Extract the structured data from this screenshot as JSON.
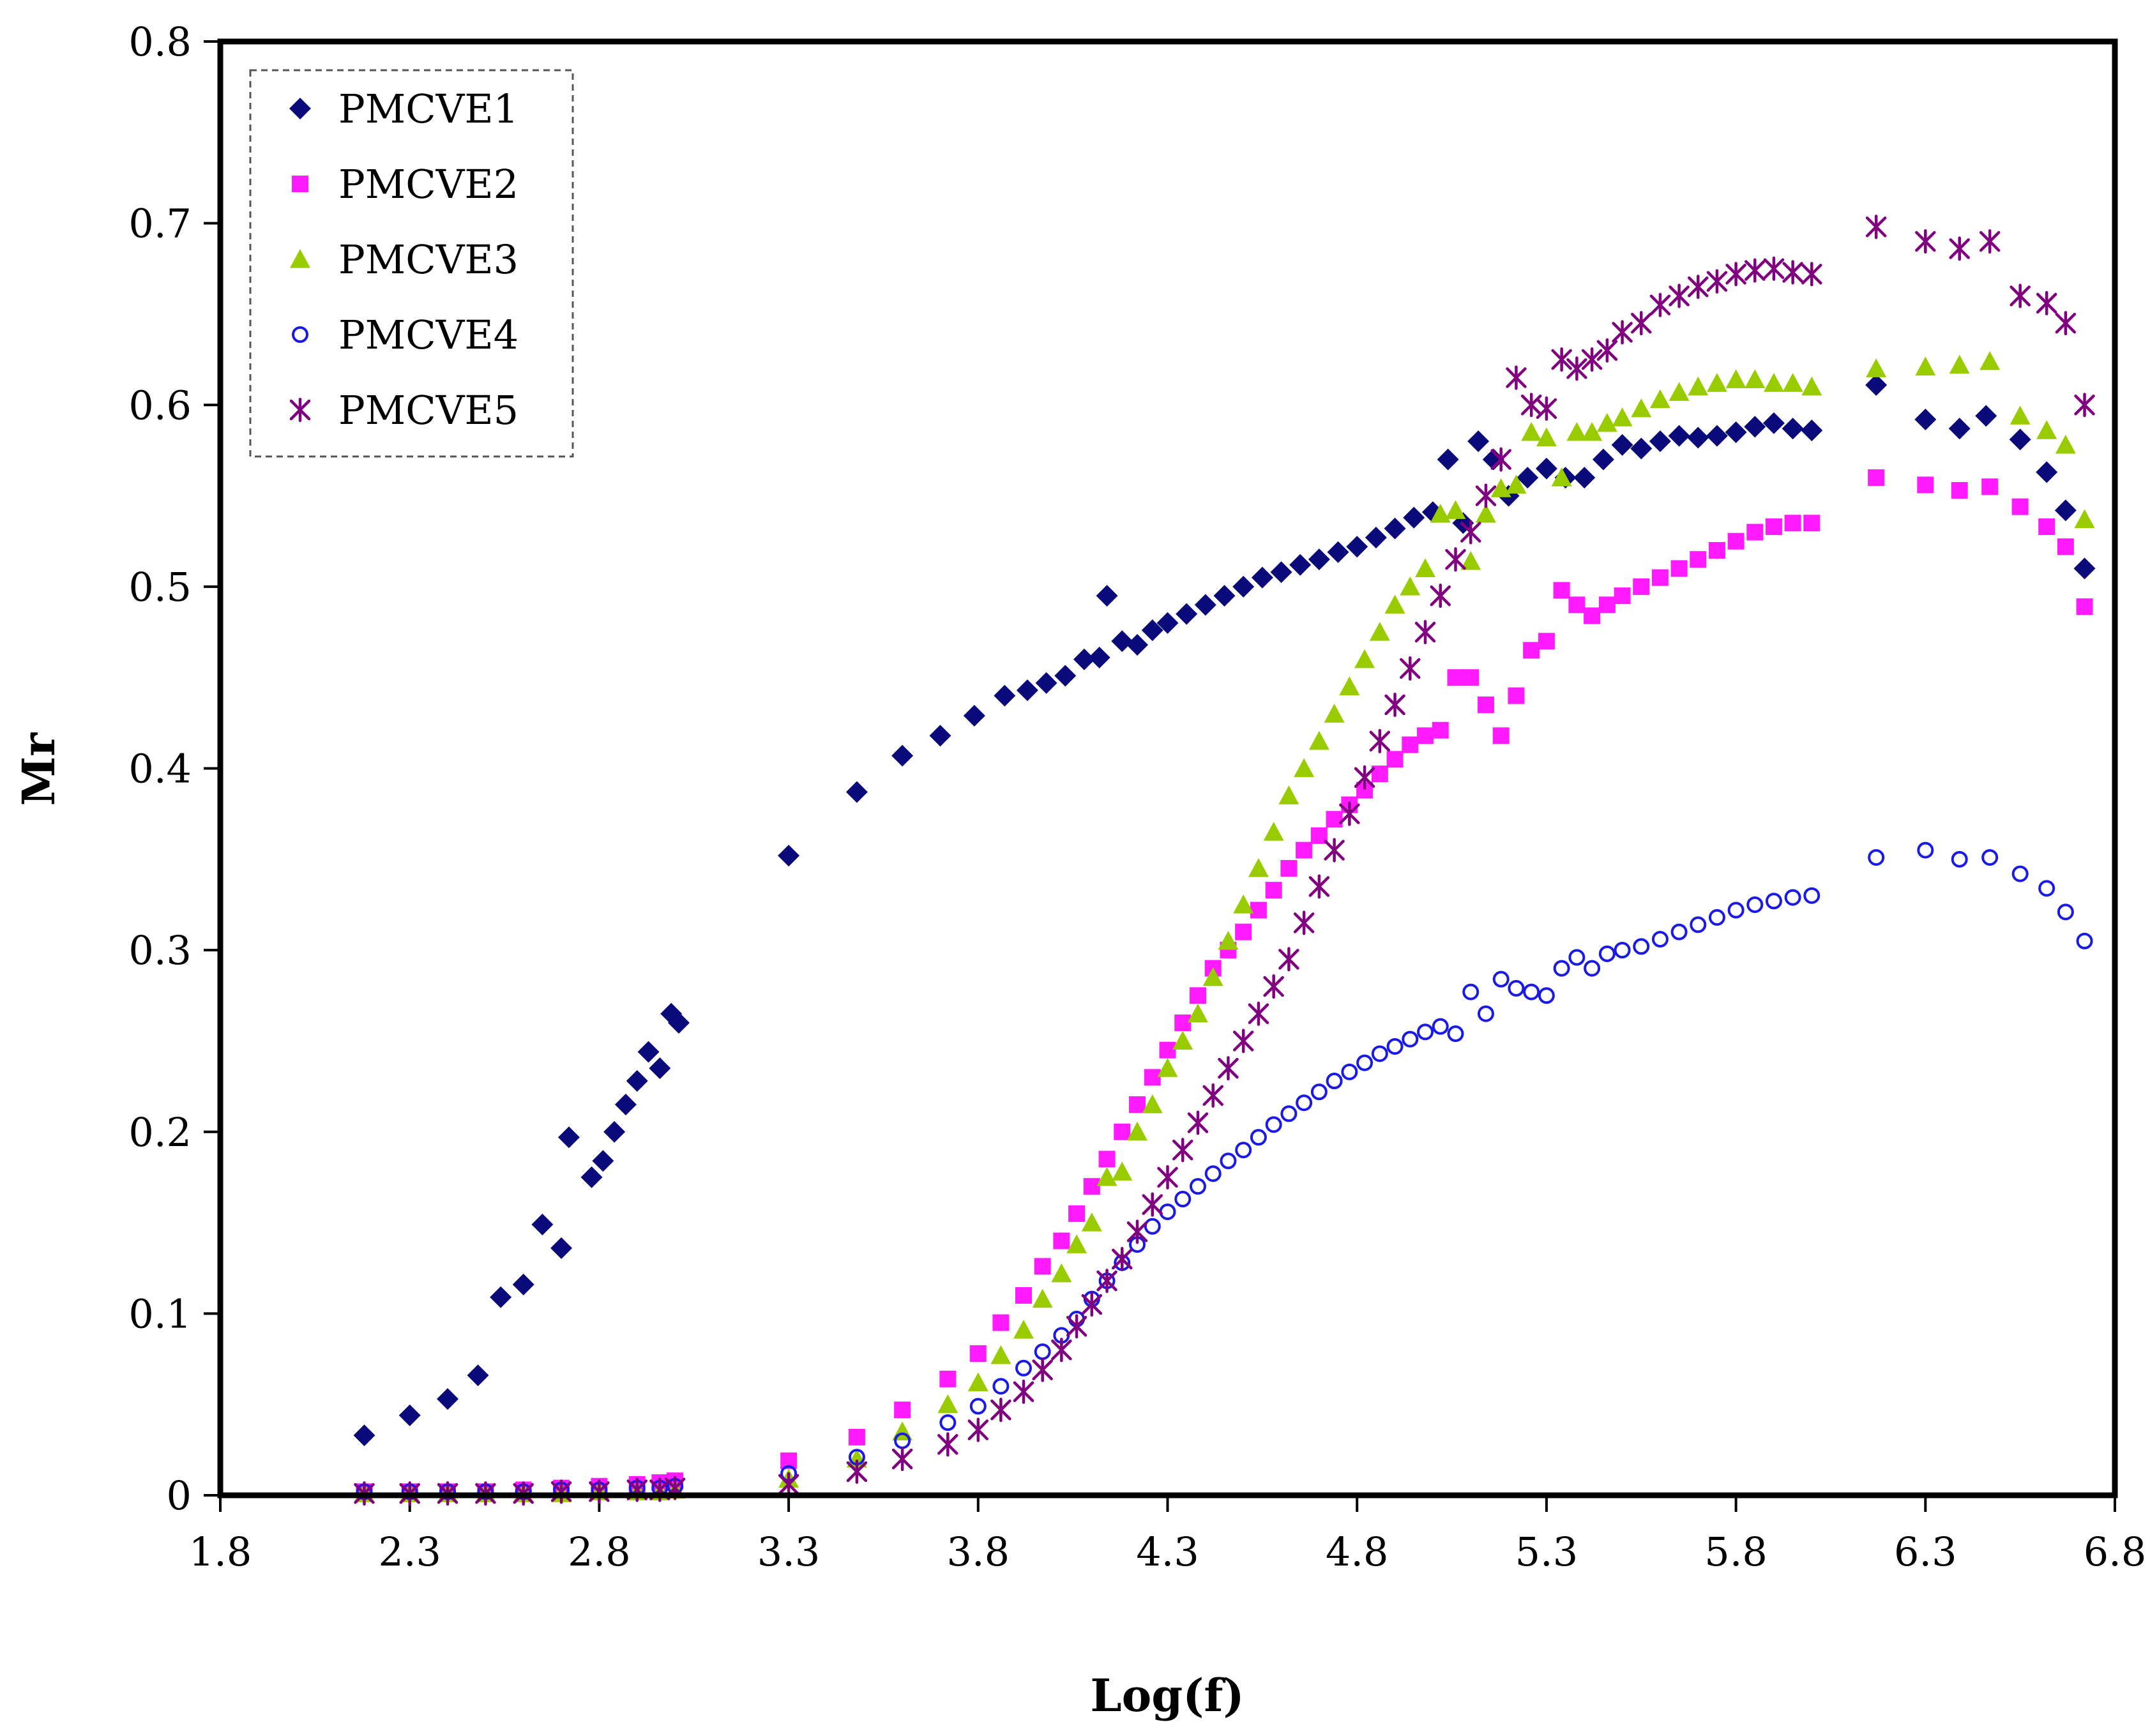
{
  "chart_data": {
    "type": "scatter",
    "title": "",
    "xlabel": "Log(f)",
    "ylabel": "Mr",
    "xlim": [
      1.8,
      6.8
    ],
    "ylim": [
      0,
      0.8
    ],
    "xticks": [
      "1.8",
      "2.3",
      "2.8",
      "3.3",
      "3.8",
      "4.3",
      "4.8",
      "5.3",
      "5.8",
      "6.3",
      "6.8"
    ],
    "yticks": [
      "0",
      "0.1",
      "0.2",
      "0.3",
      "0.4",
      "0.5",
      "0.6",
      "0.7",
      "0.8"
    ],
    "grid": false,
    "legend_position": "top-left",
    "series": [
      {
        "name": "PMCVE1",
        "marker": "diamond",
        "color": "#0a0a7a",
        "x": [
          2.18,
          2.3,
          2.4,
          2.48,
          2.54,
          2.6,
          2.65,
          2.7,
          2.72,
          2.78,
          2.81,
          2.84,
          2.87,
          2.9,
          2.93,
          2.96,
          2.99,
          3.01,
          3.3,
          3.48,
          3.6,
          3.7,
          3.79,
          3.87,
          3.93,
          3.98,
          4.03,
          4.08,
          4.12,
          4.14,
          4.18,
          4.22,
          4.26,
          4.3,
          4.35,
          4.4,
          4.45,
          4.5,
          4.55,
          4.6,
          4.65,
          4.7,
          4.75,
          4.8,
          4.85,
          4.9,
          4.95,
          5.0,
          5.04,
          5.08,
          5.12,
          5.16,
          5.2,
          5.25,
          5.3,
          5.35,
          5.4,
          5.45,
          5.5,
          5.55,
          5.6,
          5.65,
          5.7,
          5.75,
          5.8,
          5.85,
          5.9,
          5.95,
          6.0,
          6.17,
          6.3,
          6.39,
          6.46,
          6.55,
          6.62,
          6.67,
          6.72
        ],
        "y": [
          0.033,
          0.044,
          0.053,
          0.066,
          0.109,
          0.116,
          0.149,
          0.136,
          0.197,
          0.175,
          0.184,
          0.2,
          0.215,
          0.228,
          0.244,
          0.235,
          0.265,
          0.26,
          0.352,
          0.387,
          0.407,
          0.418,
          0.429,
          0.44,
          0.443,
          0.447,
          0.451,
          0.46,
          0.461,
          0.495,
          0.47,
          0.468,
          0.476,
          0.48,
          0.485,
          0.49,
          0.495,
          0.5,
          0.505,
          0.508,
          0.512,
          0.515,
          0.519,
          0.522,
          0.527,
          0.532,
          0.538,
          0.541,
          0.57,
          0.535,
          0.58,
          0.57,
          0.55,
          0.56,
          0.565,
          0.56,
          0.56,
          0.57,
          0.578,
          0.576,
          0.58,
          0.583,
          0.582,
          0.583,
          0.585,
          0.588,
          0.59,
          0.587,
          0.586,
          0.611,
          0.592,
          0.587,
          0.594,
          0.581,
          0.563,
          0.542,
          0.51
        ]
      },
      {
        "name": "PMCVE2",
        "marker": "square",
        "color": "#ff1aff",
        "x": [
          2.18,
          2.3,
          2.4,
          2.5,
          2.6,
          2.7,
          2.8,
          2.9,
          2.96,
          3.0,
          3.3,
          3.48,
          3.6,
          3.72,
          3.8,
          3.86,
          3.92,
          3.97,
          4.02,
          4.06,
          4.1,
          4.14,
          4.18,
          4.22,
          4.26,
          4.3,
          4.34,
          4.38,
          4.42,
          4.46,
          4.5,
          4.54,
          4.58,
          4.62,
          4.66,
          4.7,
          4.74,
          4.78,
          4.82,
          4.86,
          4.9,
          4.94,
          4.98,
          5.02,
          5.06,
          5.1,
          5.14,
          5.18,
          5.22,
          5.26,
          5.3,
          5.34,
          5.38,
          5.42,
          5.46,
          5.5,
          5.55,
          5.6,
          5.65,
          5.7,
          5.75,
          5.8,
          5.85,
          5.9,
          5.95,
          6.0,
          6.17,
          6.3,
          6.39,
          6.47,
          6.55,
          6.62,
          6.67,
          6.72
        ],
        "y": [
          0.002,
          0.002,
          0.002,
          0.002,
          0.003,
          0.004,
          0.005,
          0.006,
          0.007,
          0.008,
          0.019,
          0.032,
          0.047,
          0.064,
          0.078,
          0.095,
          0.11,
          0.126,
          0.14,
          0.155,
          0.17,
          0.185,
          0.2,
          0.215,
          0.23,
          0.245,
          0.26,
          0.275,
          0.29,
          0.3,
          0.31,
          0.322,
          0.333,
          0.345,
          0.355,
          0.363,
          0.372,
          0.38,
          0.388,
          0.397,
          0.405,
          0.413,
          0.418,
          0.421,
          0.45,
          0.45,
          0.435,
          0.418,
          0.44,
          0.465,
          0.47,
          0.498,
          0.49,
          0.484,
          0.49,
          0.495,
          0.5,
          0.505,
          0.51,
          0.515,
          0.52,
          0.525,
          0.53,
          0.533,
          0.535,
          0.535,
          0.56,
          0.556,
          0.553,
          0.555,
          0.544,
          0.533,
          0.522,
          0.489
        ]
      },
      {
        "name": "PMCVE3",
        "marker": "triangle",
        "color": "#99cc00",
        "x": [
          2.18,
          2.3,
          2.4,
          2.5,
          2.6,
          2.7,
          2.8,
          2.9,
          2.96,
          3.0,
          3.3,
          3.48,
          3.6,
          3.72,
          3.8,
          3.86,
          3.92,
          3.97,
          4.02,
          4.06,
          4.1,
          4.14,
          4.18,
          4.22,
          4.26,
          4.3,
          4.34,
          4.38,
          4.42,
          4.46,
          4.5,
          4.54,
          4.58,
          4.62,
          4.66,
          4.7,
          4.74,
          4.78,
          4.82,
          4.86,
          4.9,
          4.94,
          4.98,
          5.02,
          5.06,
          5.1,
          5.14,
          5.18,
          5.22,
          5.26,
          5.3,
          5.34,
          5.38,
          5.42,
          5.46,
          5.5,
          5.55,
          5.6,
          5.65,
          5.7,
          5.75,
          5.8,
          5.85,
          5.9,
          5.95,
          6.0,
          6.17,
          6.3,
          6.39,
          6.47,
          6.55,
          6.62,
          6.67,
          6.72
        ],
        "y": [
          0.001,
          0.001,
          0.001,
          0.001,
          0.001,
          0.001,
          0.002,
          0.002,
          0.002,
          0.003,
          0.009,
          0.02,
          0.035,
          0.05,
          0.062,
          0.077,
          0.091,
          0.108,
          0.122,
          0.138,
          0.15,
          0.175,
          0.178,
          0.2,
          0.215,
          0.235,
          0.25,
          0.265,
          0.285,
          0.305,
          0.325,
          0.345,
          0.365,
          0.385,
          0.4,
          0.415,
          0.43,
          0.445,
          0.46,
          0.475,
          0.49,
          0.5,
          0.51,
          0.54,
          0.542,
          0.514,
          0.54,
          0.554,
          0.556,
          0.585,
          0.582,
          0.56,
          0.585,
          0.585,
          0.59,
          0.593,
          0.598,
          0.603,
          0.607,
          0.61,
          0.612,
          0.614,
          0.614,
          0.612,
          0.612,
          0.61,
          0.62,
          0.621,
          0.622,
          0.624,
          0.594,
          0.586,
          0.578,
          0.537
        ]
      },
      {
        "name": "PMCVE4",
        "marker": "circle",
        "color": "#1a1ae6",
        "x": [
          2.18,
          2.3,
          2.4,
          2.5,
          2.6,
          2.7,
          2.8,
          2.9,
          2.96,
          3.0,
          3.3,
          3.48,
          3.6,
          3.72,
          3.8,
          3.86,
          3.92,
          3.97,
          4.02,
          4.06,
          4.1,
          4.14,
          4.18,
          4.22,
          4.26,
          4.3,
          4.34,
          4.38,
          4.42,
          4.46,
          4.5,
          4.54,
          4.58,
          4.62,
          4.66,
          4.7,
          4.74,
          4.78,
          4.82,
          4.86,
          4.9,
          4.94,
          4.98,
          5.02,
          5.06,
          5.1,
          5.14,
          5.18,
          5.22,
          5.26,
          5.3,
          5.34,
          5.38,
          5.42,
          5.46,
          5.5,
          5.55,
          5.6,
          5.65,
          5.7,
          5.75,
          5.8,
          5.85,
          5.9,
          5.95,
          6.0,
          6.17,
          6.3,
          6.39,
          6.47,
          6.55,
          6.62,
          6.67,
          6.72
        ],
        "y": [
          0.002,
          0.002,
          0.002,
          0.002,
          0.002,
          0.003,
          0.003,
          0.004,
          0.004,
          0.005,
          0.012,
          0.021,
          0.03,
          0.04,
          0.049,
          0.06,
          0.07,
          0.079,
          0.088,
          0.097,
          0.108,
          0.118,
          0.128,
          0.138,
          0.148,
          0.156,
          0.163,
          0.17,
          0.177,
          0.184,
          0.19,
          0.197,
          0.204,
          0.21,
          0.216,
          0.222,
          0.228,
          0.233,
          0.238,
          0.243,
          0.247,
          0.251,
          0.255,
          0.258,
          0.254,
          0.277,
          0.265,
          0.284,
          0.279,
          0.277,
          0.275,
          0.29,
          0.296,
          0.29,
          0.298,
          0.3,
          0.302,
          0.306,
          0.31,
          0.314,
          0.318,
          0.322,
          0.325,
          0.327,
          0.329,
          0.33,
          0.351,
          0.355,
          0.35,
          0.351,
          0.342,
          0.334,
          0.321,
          0.305
        ]
      },
      {
        "name": "PMCVE5",
        "marker": "star",
        "color": "#800080",
        "x": [
          2.18,
          2.3,
          2.4,
          2.5,
          2.6,
          2.7,
          2.8,
          2.9,
          2.96,
          3.0,
          3.3,
          3.48,
          3.6,
          3.72,
          3.8,
          3.86,
          3.92,
          3.97,
          4.02,
          4.06,
          4.1,
          4.14,
          4.18,
          4.22,
          4.26,
          4.3,
          4.34,
          4.38,
          4.42,
          4.46,
          4.5,
          4.54,
          4.58,
          4.62,
          4.66,
          4.7,
          4.74,
          4.78,
          4.82,
          4.86,
          4.9,
          4.94,
          4.98,
          5.02,
          5.06,
          5.1,
          5.14,
          5.18,
          5.22,
          5.26,
          5.3,
          5.34,
          5.38,
          5.42,
          5.46,
          5.5,
          5.55,
          5.6,
          5.65,
          5.7,
          5.75,
          5.8,
          5.85,
          5.9,
          5.95,
          6.0,
          6.17,
          6.3,
          6.39,
          6.47,
          6.55,
          6.62,
          6.67,
          6.72
        ],
        "y": [
          0.001,
          0.001,
          0.001,
          0.001,
          0.001,
          0.002,
          0.002,
          0.003,
          0.003,
          0.004,
          0.006,
          0.013,
          0.02,
          0.028,
          0.036,
          0.047,
          0.057,
          0.069,
          0.08,
          0.093,
          0.105,
          0.118,
          0.13,
          0.145,
          0.16,
          0.175,
          0.19,
          0.205,
          0.22,
          0.235,
          0.25,
          0.265,
          0.28,
          0.295,
          0.315,
          0.335,
          0.355,
          0.375,
          0.395,
          0.415,
          0.435,
          0.455,
          0.475,
          0.495,
          0.515,
          0.53,
          0.55,
          0.57,
          0.615,
          0.6,
          0.598,
          0.625,
          0.62,
          0.625,
          0.63,
          0.64,
          0.645,
          0.655,
          0.66,
          0.665,
          0.668,
          0.672,
          0.674,
          0.675,
          0.673,
          0.672,
          0.698,
          0.69,
          0.686,
          0.69,
          0.66,
          0.656,
          0.645,
          0.6
        ]
      }
    ]
  }
}
